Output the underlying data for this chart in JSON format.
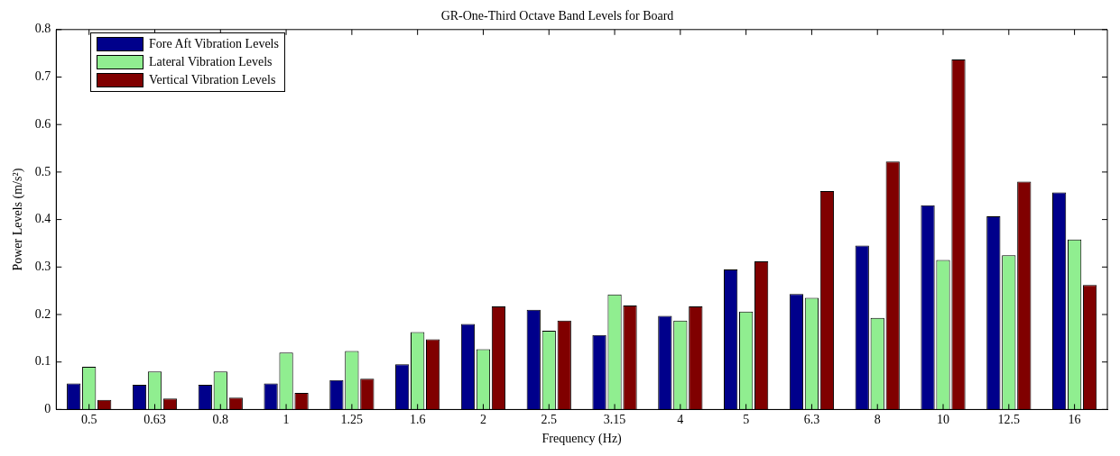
{
  "chart_data": {
    "type": "bar",
    "title": "GR-One-Third Octave Band Levels for Board",
    "xlabel": "Frequency (Hz)",
    "ylabel": "Power Levels (m/s²)",
    "categories": [
      "0.5",
      "0.63",
      "0.8",
      "1",
      "1.25",
      "1.6",
      "2",
      "2.5",
      "3.15",
      "4",
      "5",
      "6.3",
      "8",
      "10",
      "12.5",
      "16"
    ],
    "series": [
      {
        "name": "Fore Aft Vibration Levels",
        "color": "#00008b",
        "values": [
          0.055,
          0.052,
          0.052,
          0.055,
          0.062,
          0.095,
          0.18,
          0.21,
          0.157,
          0.197,
          0.295,
          0.243,
          0.345,
          0.43,
          0.407,
          0.457
        ]
      },
      {
        "name": "Lateral Vibration Levels",
        "color": "#90ee90",
        "values": [
          0.09,
          0.08,
          0.08,
          0.12,
          0.123,
          0.163,
          0.127,
          0.166,
          0.242,
          0.187,
          0.206,
          0.235,
          0.193,
          0.315,
          0.325,
          0.358
        ]
      },
      {
        "name": "Vertical Vibration Levels",
        "color": "#800000",
        "values": [
          0.02,
          0.023,
          0.025,
          0.035,
          0.065,
          0.148,
          0.217,
          0.187,
          0.219,
          0.217,
          0.312,
          0.46,
          0.522,
          0.737,
          0.48,
          0.262
        ]
      }
    ],
    "ylim": [
      0,
      0.8
    ],
    "yticks": [
      0,
      0.1,
      0.2,
      0.3,
      0.4,
      0.5,
      0.6,
      0.7,
      0.8
    ],
    "grid": false,
    "legend": "top left"
  }
}
